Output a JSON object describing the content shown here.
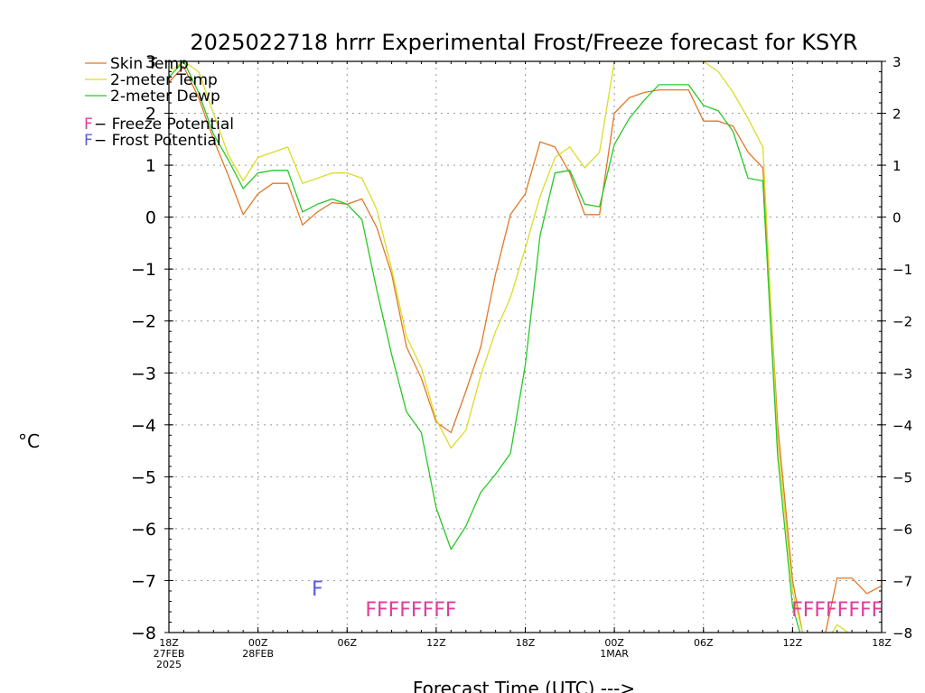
{
  "chart_data": {
    "type": "line",
    "title": "2025022718 hrrr Experimental Frost/Freeze forecast for KSYR",
    "xlabel": "Forecast Time (UTC) --->",
    "ylabel": "°C",
    "ylim": [
      -8,
      3
    ],
    "xlim": [
      0,
      48
    ],
    "grid": true,
    "legend_position": "top-left",
    "y_ticks": [
      3,
      2,
      1,
      0,
      -1,
      -2,
      -3,
      -4,
      -5,
      -6,
      -7,
      -8
    ],
    "y_tick_labels": [
      "3",
      "2",
      "1",
      "0",
      "−1",
      "−2",
      "−3",
      "−4",
      "−5",
      "−6",
      "−7",
      "−8"
    ],
    "x_ticks": [
      {
        "hour": 0,
        "lines": [
          "18Z",
          "27FEB",
          "2025"
        ]
      },
      {
        "hour": 6,
        "lines": [
          "00Z",
          "28FEB"
        ]
      },
      {
        "hour": 12,
        "lines": [
          "06Z"
        ]
      },
      {
        "hour": 18,
        "lines": [
          "12Z"
        ]
      },
      {
        "hour": 24,
        "lines": [
          "18Z"
        ]
      },
      {
        "hour": 30,
        "lines": [
          "00Z",
          "1MAR"
        ]
      },
      {
        "hour": 36,
        "lines": [
          "06Z"
        ]
      },
      {
        "hour": 42,
        "lines": [
          "12Z"
        ]
      },
      {
        "hour": 48,
        "lines": [
          "18Z"
        ]
      }
    ],
    "series": [
      {
        "name": "Skin Temp",
        "color": "#e07828",
        "x": [
          0,
          1,
          2,
          3,
          4,
          5,
          6,
          7,
          8,
          9,
          10,
          11,
          12,
          13,
          14,
          15,
          16,
          17,
          18,
          19,
          20,
          21,
          22,
          23,
          24,
          25,
          26,
          27,
          28,
          29,
          30,
          31,
          32,
          33,
          34,
          35,
          36,
          37,
          38,
          39,
          40,
          41,
          42,
          43,
          44,
          45,
          46,
          47,
          48
        ],
        "y": [
          2.6,
          2.9,
          2.3,
          1.5,
          0.8,
          0.05,
          0.45,
          0.65,
          0.65,
          -0.15,
          0.1,
          0.28,
          0.25,
          0.35,
          -0.2,
          -1.1,
          -2.5,
          -3.1,
          -3.95,
          -4.15,
          -3.35,
          -2.5,
          -1.1,
          0.05,
          0.45,
          1.45,
          1.35,
          0.85,
          0.05,
          0.05,
          2.0,
          2.3,
          2.4,
          2.45,
          2.45,
          2.45,
          1.85,
          1.85,
          1.75,
          1.25,
          0.95,
          -4.0,
          -7.0,
          -8.5,
          -8.3,
          -6.95,
          -6.95,
          -7.25,
          -7.1
        ]
      },
      {
        "name": "2-meter Temp",
        "color": "#dcdc28",
        "x": [
          0,
          1,
          2,
          3,
          4,
          5,
          6,
          7,
          8,
          9,
          10,
          11,
          12,
          13,
          14,
          15,
          16,
          17,
          18,
          19,
          20,
          21,
          22,
          23,
          24,
          25,
          26,
          27,
          28,
          29,
          30,
          31,
          32,
          33,
          34,
          35,
          36,
          37,
          38,
          39,
          40,
          41,
          42,
          43,
          44,
          45,
          46,
          47,
          48
        ],
        "y": [
          2.8,
          3.0,
          2.8,
          2.0,
          1.2,
          0.7,
          1.15,
          1.25,
          1.35,
          0.65,
          0.75,
          0.85,
          0.85,
          0.75,
          0.15,
          -1.0,
          -2.3,
          -2.9,
          -3.9,
          -4.45,
          -4.1,
          -3.05,
          -2.2,
          -1.55,
          -0.6,
          0.4,
          1.15,
          1.35,
          0.95,
          1.25,
          3.0,
          3.0,
          3.0,
          3.0,
          3.0,
          3.0,
          3.0,
          2.8,
          2.4,
          1.9,
          1.35,
          -4.3,
          -7.2,
          -8.4,
          -8.3,
          -7.85,
          -8.05,
          -8.1,
          -8.05
        ]
      },
      {
        "name": "2-meter Dewp",
        "color": "#28c828",
        "x": [
          0,
          1,
          2,
          3,
          4,
          5,
          6,
          7,
          8,
          9,
          10,
          11,
          12,
          13,
          14,
          15,
          16,
          17,
          18,
          19,
          20,
          21,
          22,
          23,
          24,
          25,
          26,
          27,
          28,
          29,
          30,
          31,
          32,
          33,
          34,
          35,
          36,
          37,
          38,
          39,
          40,
          41,
          42,
          43,
          44,
          45,
          46,
          47,
          48
        ],
        "y": [
          2.7,
          3.0,
          2.4,
          1.6,
          1.1,
          0.55,
          0.85,
          0.9,
          0.9,
          0.1,
          0.25,
          0.35,
          0.25,
          -0.05,
          -1.4,
          -2.65,
          -3.75,
          -4.15,
          -5.6,
          -6.4,
          -5.95,
          -5.3,
          -4.95,
          -4.55,
          -2.85,
          -0.35,
          0.85,
          0.9,
          0.25,
          0.2,
          1.4,
          1.9,
          2.25,
          2.55,
          2.55,
          2.55,
          2.15,
          2.05,
          1.65,
          0.75,
          0.7,
          -4.6,
          -7.5,
          -8.5,
          -8.4,
          -8.35,
          -8.35,
          -8.4,
          -8.3
        ]
      }
    ],
    "legend_notes": [
      {
        "marker": "F",
        "text": " − Freeze Potential",
        "color": "#e03c9c"
      },
      {
        "marker": "F",
        "text": " − Frost Potential",
        "color": "#5a5ae0"
      }
    ],
    "annotations": [
      {
        "text": "F",
        "hour": 10,
        "value": -7.15,
        "color": "#5a5ae0"
      },
      {
        "text": "FFFFFFFF",
        "hour": 16.3,
        "value": -7.55,
        "color": "#e03c9c"
      },
      {
        "text": "FFFFFFFF",
        "hour": 45.0,
        "value": -7.55,
        "color": "#e03c9c"
      }
    ]
  }
}
